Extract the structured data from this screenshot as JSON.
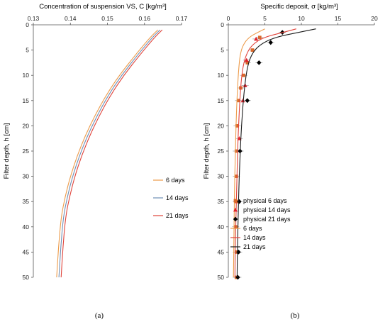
{
  "chart_data": [
    {
      "type": "line",
      "panel_label": "(a)",
      "xlabel": "Concentration of suspension VS, C [kg/m³]",
      "ylabel": "Filter depth, h [cm]",
      "xlim": [
        0.13,
        0.17
      ],
      "ylim": [
        0,
        50
      ],
      "y_inverted": true,
      "x_axis_position": "top",
      "x_ticks": [
        "0.13",
        "0.14",
        "0.15",
        "0.16",
        "0.17"
      ],
      "y_ticks": [
        "0",
        "5",
        "10",
        "15",
        "20",
        "25",
        "30",
        "35",
        "40",
        "45",
        "50"
      ],
      "grid": false,
      "legend_position": "right-middle",
      "series": [
        {
          "name": "6 days",
          "color": "#ed9b4a",
          "style": "line",
          "x": [
            0.1636,
            0.1615,
            0.1575,
            0.1532,
            0.1496,
            0.1466,
            0.144,
            0.1418,
            0.14,
            0.1386,
            0.1375,
            0.1368,
            0.1363
          ],
          "y": [
            1,
            2.5,
            6,
            10,
            14,
            18,
            22,
            26,
            30,
            34,
            38,
            44,
            50
          ]
        },
        {
          "name": "14 days",
          "color": "#6f8fb5",
          "style": "line",
          "x": [
            0.1642,
            0.1621,
            0.1581,
            0.1538,
            0.1502,
            0.1472,
            0.1446,
            0.1424,
            0.1406,
            0.1392,
            0.1381,
            0.1374,
            0.1369
          ],
          "y": [
            1,
            2.5,
            6,
            10,
            14,
            18,
            22,
            26,
            30,
            34,
            38,
            44,
            50
          ]
        },
        {
          "name": "21 days",
          "color": "#e0433a",
          "style": "line",
          "x": [
            0.1648,
            0.1627,
            0.1587,
            0.1544,
            0.1508,
            0.1478,
            0.1452,
            0.143,
            0.1412,
            0.1398,
            0.1387,
            0.138,
            0.1375
          ],
          "y": [
            1,
            2.5,
            6,
            10,
            14,
            18,
            22,
            26,
            30,
            34,
            38,
            44,
            50
          ]
        }
      ]
    },
    {
      "type": "scatter",
      "panel_label": "(b)",
      "xlabel": "Specific deposit, σ [kg/m³]",
      "ylabel": "Filter depth, h [cm]",
      "xlim": [
        0,
        20
      ],
      "ylim": [
        0,
        50
      ],
      "y_inverted": true,
      "x_axis_position": "top",
      "x_ticks": [
        "0",
        "5",
        "10",
        "15",
        "20"
      ],
      "y_ticks": [
        "0",
        "5",
        "10",
        "15",
        "20",
        "25",
        "30",
        "35",
        "40",
        "45",
        "50"
      ],
      "grid": false,
      "legend_position": "right-lower",
      "series": [
        {
          "name": "physical 6 days",
          "color": "#d9692b",
          "style": "square",
          "x": [
            4.3,
            3.3,
            2.6,
            2.1,
            1.7,
            1.4,
            1.2,
            1.1,
            1.1,
            1.1,
            1.0,
            1.1,
            1.1
          ],
          "y": [
            2.5,
            5,
            7.5,
            10,
            12.5,
            15,
            20,
            25,
            30,
            35,
            40,
            45,
            50
          ]
        },
        {
          "name": "physical 14 days",
          "color": "#e0202a",
          "style": "triangle",
          "x": [
            3.8,
            2.5,
            2.3,
            2.0,
            1.5
          ],
          "y": [
            2.8,
            7,
            12,
            15,
            22.5
          ]
        },
        {
          "name": "physical 21 days",
          "color": "#000000",
          "style": "diamond",
          "x": [
            7.4,
            5.8,
            4.2,
            2.6,
            1.6,
            1.5,
            1.4,
            1.3
          ],
          "y": [
            1.5,
            3.5,
            7.5,
            15,
            25,
            35,
            45,
            50
          ]
        },
        {
          "name": "6 days",
          "color": "#ed9b4a",
          "style": "line",
          "x": [
            5.0,
            4.0,
            2.8,
            2.0,
            1.6,
            1.4,
            1.2,
            1.05,
            0.95,
            0.85,
            0.8,
            0.75,
            0.7
          ],
          "y": [
            0.8,
            1.5,
            2.5,
            4,
            6,
            9,
            14,
            20,
            26,
            32,
            38,
            44,
            50
          ]
        },
        {
          "name": "14 days",
          "color": "#e0433a",
          "style": "line",
          "x": [
            9.3,
            7.5,
            4.8,
            3.2,
            2.4,
            1.9,
            1.6,
            1.4,
            1.25,
            1.15,
            1.05,
            0.95,
            0.9
          ],
          "y": [
            0.8,
            1.5,
            2.5,
            4,
            6,
            9,
            14,
            20,
            26,
            32,
            38,
            44,
            50
          ]
        },
        {
          "name": "21 days",
          "color": "#1a1a1a",
          "style": "line",
          "x": [
            12.0,
            9.6,
            6.3,
            4.2,
            3.1,
            2.5,
            2.1,
            1.8,
            1.6,
            1.45,
            1.35,
            1.25,
            1.2
          ],
          "y": [
            0.8,
            1.5,
            2.5,
            4,
            6,
            9,
            14,
            20,
            26,
            32,
            38,
            44,
            50
          ]
        }
      ]
    }
  ]
}
